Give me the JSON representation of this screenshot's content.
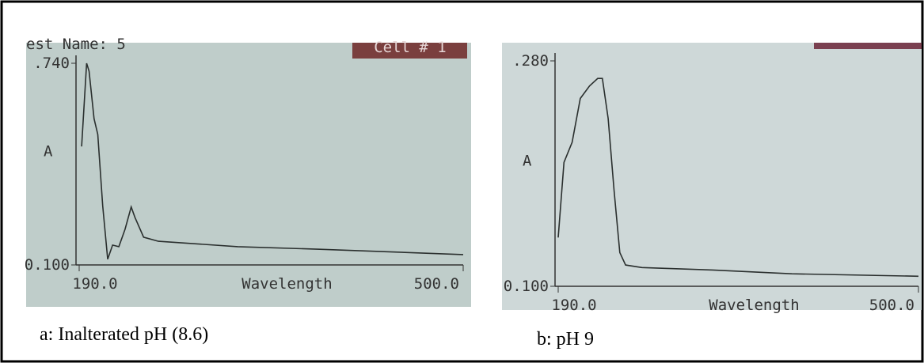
{
  "chart_data": [
    {
      "type": "line",
      "header": "est Name: 5",
      "badge": "Cell # 1",
      "caption": "a: Inalterated pH (8.6)",
      "ylabel": "A",
      "xlabel": "Wavelength",
      "color": "#2a2f2e",
      "xlim": [
        190,
        500
      ],
      "ylim": [
        0.1,
        0.74
      ],
      "xticks": [
        {
          "value": 190,
          "label": "190.0"
        },
        {
          "value": 500,
          "label": "500.0"
        }
      ],
      "yticks": [
        {
          "value": 0.1,
          "label": "0.100"
        },
        {
          "value": 0.74,
          "label": ".740"
        }
      ],
      "x": [
        192,
        196,
        198,
        202,
        205,
        209,
        213,
        217,
        222,
        227,
        232,
        235,
        242,
        254,
        318,
        382,
        500
      ],
      "values": [
        0.476,
        0.74,
        0.715,
        0.564,
        0.514,
        0.288,
        0.118,
        0.163,
        0.158,
        0.213,
        0.284,
        0.251,
        0.188,
        0.175,
        0.158,
        0.15,
        0.133
      ]
    },
    {
      "type": "line",
      "caption": "b: pH 9",
      "ylabel": "A",
      "xlabel": "Wavelength",
      "color": "#2a2f2e",
      "xlim": [
        190,
        500
      ],
      "ylim": [
        0.1,
        0.28
      ],
      "xticks": [
        {
          "value": 190,
          "label": "190.0"
        },
        {
          "value": 500,
          "label": "500.0"
        }
      ],
      "yticks": [
        {
          "value": 0.1,
          "label": "0.100"
        },
        {
          "value": 0.28,
          "label": ".280"
        }
      ],
      "x": [
        190,
        195,
        202,
        209,
        217,
        224,
        228,
        233,
        238,
        243,
        248,
        262,
        323,
        391,
        500
      ],
      "values": [
        0.139,
        0.199,
        0.215,
        0.25,
        0.26,
        0.266,
        0.266,
        0.234,
        0.177,
        0.127,
        0.117,
        0.115,
        0.113,
        0.11,
        0.108
      ]
    }
  ]
}
